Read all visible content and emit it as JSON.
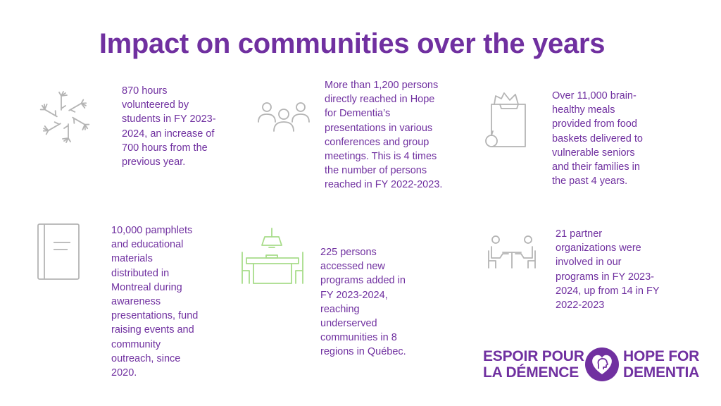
{
  "title": "Impact on communities over the years",
  "accent_color": "#7030a0",
  "stats": [
    {
      "icon": "helping-hands-icon",
      "text": "870 hours\nvolunteered by\nstudents in FY 2023-\n2024, an increase of\n700 hours from the\nprevious year."
    },
    {
      "icon": "group-people-icon",
      "text": "More than 1,200 persons\ndirectly reached in Hope\nfor Dementia’s\npresentations in various\nconferences and group\nmeetings.  This is 4 times\nthe number of persons\nreached in FY 2022-2023."
    },
    {
      "icon": "grocery-bag-icon",
      "text": "Over 11,000 brain-\nhealthy meals\nprovided from food\nbaskets delivered to\nvulnerable seniors\nand their families in\nthe past 4 years."
    },
    {
      "icon": "notebook-icon",
      "text": "10,000 pamphlets\nand educational\nmaterials\ndistributed in\nMontreal during\nawareness\npresentations, fund\nraising events and\ncommunity\noutreach, since\n2020."
    },
    {
      "icon": "dining-table-icon",
      "text": "225 persons\naccessed new\nprograms added   in\nFY 2023-2024,\nreaching\nunderserved\ncommunities in 8\nregions in Québec."
    },
    {
      "icon": "meeting-table-icon",
      "text": "21 partner\norganizations were\ninvolved in our\nprograms in FY 2023-\n2024, up from 14 in FY\n2022-2023"
    }
  ],
  "logo": {
    "fr_line1": "ESPOIR POUR",
    "fr_line2": "LA DÉMENCE",
    "en_line1": "HOPE FOR",
    "en_line2": "DEMENTIA",
    "icon": "heart-head-icon"
  }
}
